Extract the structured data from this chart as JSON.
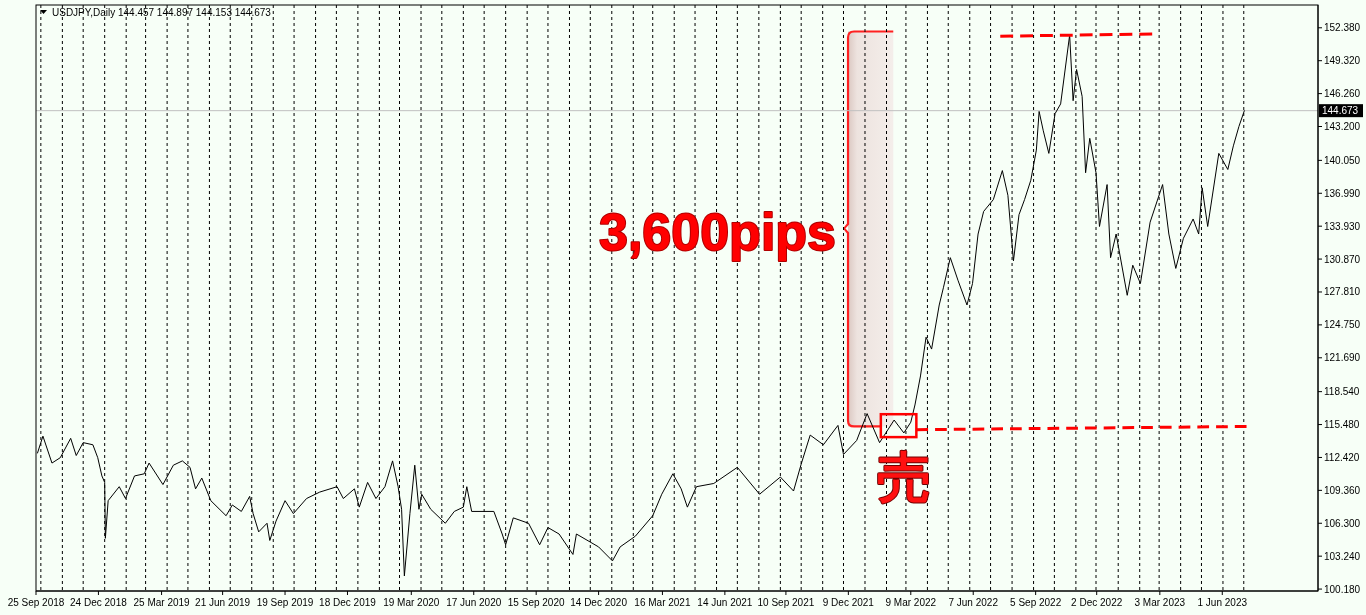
{
  "chart_data": {
    "type": "line",
    "title": "USDJPY,Daily 144.457 144.897 144.153 144.673",
    "annotations": [
      "3,600pips",
      "売"
    ],
    "xlim": [
      "2018-09-25",
      "2023-10-17"
    ],
    "xticks": [
      {
        "value": "2018-09-25",
        "label": "25 Sep 2018"
      },
      {
        "value": "2018-12-24",
        "label": "24 Dec 2018"
      },
      {
        "value": "2019-03-25",
        "label": "25 Mar 2019"
      },
      {
        "value": "2019-06-21",
        "label": "21 Jun 2019"
      },
      {
        "value": "2019-09-19",
        "label": "19 Sep 2019"
      },
      {
        "value": "2019-12-18",
        "label": "18 Dec 2019"
      },
      {
        "value": "2020-03-19",
        "label": "19 Mar 2020"
      },
      {
        "value": "2020-06-17",
        "label": "17 Jun 2020"
      },
      {
        "value": "2020-09-15",
        "label": "15 Sep 2020"
      },
      {
        "value": "2020-12-14",
        "label": "14 Dec 2020"
      },
      {
        "value": "2021-03-16",
        "label": "16 Mar 2021"
      },
      {
        "value": "2021-06-14",
        "label": "14 Jun 2021"
      },
      {
        "value": "2021-09-10",
        "label": "10 Sep 2021"
      },
      {
        "value": "2021-12-09",
        "label": "9 Dec 2021"
      },
      {
        "value": "2022-03-09",
        "label": "9 Mar 2022"
      },
      {
        "value": "2022-06-07",
        "label": "7 Jun 2022"
      },
      {
        "value": "2022-09-05",
        "label": "5 Sep 2022"
      },
      {
        "value": "2022-12-02",
        "label": "2 Dec 2022"
      },
      {
        "value": "2023-03-03",
        "label": "3 Mar 2023"
      },
      {
        "value": "2023-06-01",
        "label": "1 Jun 2023"
      },
      {
        "value": "2018-10-02",
        "label": null
      },
      {
        "value": "2018-11-02",
        "label": null
      },
      {
        "value": "2018-12-02",
        "label": null
      },
      {
        "value": "2019-01-02",
        "label": null
      },
      {
        "value": "2019-02-02",
        "label": null
      },
      {
        "value": "2019-03-02",
        "label": null
      },
      {
        "value": "2019-04-02",
        "label": null
      },
      {
        "value": "2019-05-02",
        "label": null
      },
      {
        "value": "2019-06-02",
        "label": null
      },
      {
        "value": "2019-07-02",
        "label": null
      },
      {
        "value": "2019-08-02",
        "label": null
      },
      {
        "value": "2019-09-02",
        "label": null
      },
      {
        "value": "2019-10-02",
        "label": null
      },
      {
        "value": "2019-11-02",
        "label": null
      },
      {
        "value": "2019-12-02",
        "label": null
      },
      {
        "value": "2020-01-02",
        "label": null
      },
      {
        "value": "2020-02-02",
        "label": null
      },
      {
        "value": "2020-03-02",
        "label": null
      },
      {
        "value": "2020-04-02",
        "label": null
      },
      {
        "value": "2020-05-02",
        "label": null
      },
      {
        "value": "2020-06-02",
        "label": null
      },
      {
        "value": "2020-07-02",
        "label": null
      },
      {
        "value": "2020-08-02",
        "label": null
      },
      {
        "value": "2020-09-02",
        "label": null
      },
      {
        "value": "2020-10-02",
        "label": null
      },
      {
        "value": "2020-11-02",
        "label": null
      },
      {
        "value": "2020-12-02",
        "label": null
      },
      {
        "value": "2021-01-02",
        "label": null
      },
      {
        "value": "2021-02-02",
        "label": null
      },
      {
        "value": "2021-03-02",
        "label": null
      },
      {
        "value": "2021-04-02",
        "label": null
      },
      {
        "value": "2021-05-02",
        "label": null
      },
      {
        "value": "2021-06-02",
        "label": null
      },
      {
        "value": "2021-07-02",
        "label": null
      },
      {
        "value": "2021-08-02",
        "label": null
      },
      {
        "value": "2021-09-02",
        "label": null
      },
      {
        "value": "2021-10-02",
        "label": null
      },
      {
        "value": "2021-11-02",
        "label": null
      },
      {
        "value": "2021-12-02",
        "label": null
      },
      {
        "value": "2022-01-02",
        "label": null
      },
      {
        "value": "2022-02-02",
        "label": null
      },
      {
        "value": "2022-03-02",
        "label": null
      },
      {
        "value": "2022-04-02",
        "label": null
      },
      {
        "value": "2022-05-02",
        "label": null
      },
      {
        "value": "2022-06-02",
        "label": null
      },
      {
        "value": "2022-07-02",
        "label": null
      },
      {
        "value": "2022-08-02",
        "label": null
      },
      {
        "value": "2022-09-02",
        "label": null
      },
      {
        "value": "2022-10-02",
        "label": null
      },
      {
        "value": "2022-11-02",
        "label": null
      },
      {
        "value": "2022-12-01",
        "label": null
      },
      {
        "value": "2023-01-02",
        "label": null
      },
      {
        "value": "2023-02-02",
        "label": null
      },
      {
        "value": "2023-03-02",
        "label": null
      },
      {
        "value": "2023-04-02",
        "label": null
      },
      {
        "value": "2023-05-02",
        "label": null
      },
      {
        "value": "2023-06-02",
        "label": null
      },
      {
        "value": "2023-07-02",
        "label": null
      }
    ],
    "ylim": [
      100.0,
      154.5
    ],
    "yticks": [
      {
        "value": 100.18,
        "label": "100.180"
      },
      {
        "value": 103.24,
        "label": "103.240"
      },
      {
        "value": 106.3,
        "label": "106.300"
      },
      {
        "value": 109.36,
        "label": "109.360"
      },
      {
        "value": 112.42,
        "label": "112.420"
      },
      {
        "value": 115.48,
        "label": "115.480"
      },
      {
        "value": 118.54,
        "label": "118.540"
      },
      {
        "value": 121.69,
        "label": "121.690"
      },
      {
        "value": 124.75,
        "label": "124.750"
      },
      {
        "value": 127.81,
        "label": "127.810"
      },
      {
        "value": 130.87,
        "label": "130.870"
      },
      {
        "value": 133.93,
        "label": "133.930"
      },
      {
        "value": 136.99,
        "label": "136.990"
      },
      {
        "value": 140.05,
        "label": "140.050"
      },
      {
        "value": 143.2,
        "label": "143.200"
      },
      {
        "value": 146.26,
        "label": "146.260"
      },
      {
        "value": 149.32,
        "label": "149.320"
      },
      {
        "value": 152.38,
        "label": "152.380"
      }
    ],
    "grid": "x",
    "ref_lines": [
      {
        "axis": "y",
        "value": 144.673,
        "label": "144.673",
        "color": "#c0c0c0"
      }
    ],
    "series": [
      {
        "color": "#000000",
        "x": [
          "2018-09-27",
          "2018-10-05",
          "2018-10-18",
          "2018-10-30",
          "2018-11-14",
          "2018-11-22",
          "2018-12-02",
          "2018-12-16",
          "2018-12-23",
          "2018-12-29",
          "2019-01-02",
          "2019-01-03",
          "2019-01-07",
          "2019-01-23",
          "2019-02-01",
          "2019-02-14",
          "2019-02-28",
          "2019-03-07",
          "2019-03-27",
          "2019-04-11",
          "2019-04-24",
          "2019-05-05",
          "2019-05-13",
          "2019-05-22",
          "2019-06-04",
          "2019-06-26",
          "2019-07-05",
          "2019-07-18",
          "2019-07-30",
          "2019-08-04",
          "2019-08-12",
          "2019-08-24",
          "2019-08-28",
          "2019-09-06",
          "2019-09-19",
          "2019-10-01",
          "2019-10-20",
          "2019-11-08",
          "2019-12-03",
          "2019-12-12",
          "2019-12-28",
          "2020-01-04",
          "2020-01-16",
          "2020-01-28",
          "2020-02-10",
          "2020-02-21",
          "2020-02-29",
          "2020-03-05",
          "2020-03-09",
          "2020-03-17",
          "2020-03-24",
          "2020-03-30",
          "2020-04-03",
          "2020-04-16",
          "2020-05-07",
          "2020-05-20",
          "2020-06-02",
          "2020-06-07",
          "2020-06-14",
          "2020-07-16",
          "2020-07-28",
          "2020-08-02",
          "2020-08-13",
          "2020-09-04",
          "2020-09-20",
          "2020-10-02",
          "2020-10-18",
          "2020-11-07",
          "2020-11-12",
          "2020-12-14",
          "2021-01-03",
          "2021-01-14",
          "2021-02-05",
          "2021-03-02",
          "2021-03-15",
          "2021-03-31",
          "2021-04-12",
          "2021-04-21",
          "2021-05-04",
          "2021-05-29",
          "2021-07-02",
          "2021-08-03",
          "2021-09-02",
          "2021-09-21",
          "2021-10-02",
          "2021-10-15",
          "2021-11-03",
          "2021-11-24",
          "2021-12-02",
          "2021-12-21",
          "2022-01-05",
          "2022-01-23",
          "2022-02-13",
          "2022-02-27",
          "2022-03-09",
          "2022-03-15",
          "2022-03-23",
          "2022-03-31",
          "2022-04-08",
          "2022-04-19",
          "2022-04-25",
          "2022-05-05",
          "2022-05-16",
          "2022-05-29",
          "2022-06-06",
          "2022-06-14",
          "2022-06-22",
          "2022-07-06",
          "2022-07-19",
          "2022-07-27",
          "2022-08-04",
          "2022-08-12",
          "2022-08-20",
          "2022-08-29",
          "2022-09-06",
          "2022-09-10",
          "2022-09-16",
          "2022-09-24",
          "2022-10-03",
          "2022-10-11",
          "2022-10-24",
          "2022-10-29",
          "2022-11-03",
          "2022-11-11",
          "2022-11-16",
          "2022-11-22",
          "2022-12-01",
          "2022-12-06",
          "2022-12-17",
          "2022-12-22",
          "2022-12-30",
          "2023-01-15",
          "2023-01-23",
          "2023-02-03",
          "2023-02-17",
          "2023-03-07",
          "2023-03-16",
          "2023-03-26",
          "2023-04-06",
          "2023-04-20",
          "2023-04-28",
          "2023-05-03",
          "2023-05-11",
          "2023-05-27",
          "2023-06-09",
          "2023-06-17",
          "2023-06-25",
          "2023-07-03"
        ],
        "values": [
          112.8,
          114.4,
          111.9,
          112.4,
          114.2,
          112.6,
          113.8,
          113.6,
          112.4,
          110.7,
          110.1,
          104.9,
          108.4,
          109.7,
          108.6,
          110.7,
          110.9,
          111.9,
          109.9,
          111.7,
          112.1,
          111.5,
          109.5,
          110.5,
          108.4,
          107.0,
          108.0,
          107.4,
          108.8,
          107.2,
          105.5,
          106.3,
          104.7,
          106.5,
          108.4,
          107.2,
          108.6,
          109.2,
          109.7,
          108.6,
          109.5,
          107.8,
          110.1,
          108.6,
          109.7,
          112.1,
          109.7,
          107.6,
          101.4,
          107.2,
          111.7,
          107.6,
          109.0,
          107.6,
          106.3,
          107.4,
          107.8,
          109.7,
          107.4,
          107.4,
          105.3,
          104.3,
          106.8,
          106.3,
          104.3,
          105.9,
          105.3,
          103.4,
          105.3,
          104.1,
          102.8,
          104.1,
          105.1,
          107.0,
          109.0,
          110.9,
          109.5,
          107.8,
          109.7,
          110.0,
          111.5,
          109.0,
          110.6,
          109.3,
          111.8,
          114.5,
          113.6,
          115.4,
          112.7,
          114.0,
          116.5,
          113.8,
          115.9,
          114.7,
          115.7,
          117.3,
          120.0,
          123.6,
          122.5,
          126.6,
          128.2,
          131.0,
          128.9,
          126.6,
          128.6,
          133.2,
          135.3,
          136.4,
          139.1,
          136.8,
          130.7,
          135.0,
          136.4,
          138.2,
          141.0,
          144.6,
          142.8,
          140.7,
          144.4,
          145.3,
          151.7,
          145.6,
          148.5,
          146.0,
          138.9,
          142.1,
          138.9,
          133.9,
          137.8,
          131.0,
          133.2,
          127.5,
          130.3,
          128.6,
          134.3,
          137.8,
          133.2,
          130.0,
          132.8,
          134.6,
          133.2,
          137.5,
          133.9,
          140.7,
          139.2,
          141.4,
          143.2,
          144.7
        ]
      },
      {
        "color": "#ff0000",
        "line_style": "dashed",
        "x": [
          "2022-03-17",
          "2023-07-06"
        ],
        "values": [
          115.0,
          115.3
        ]
      },
      {
        "color": "#ff0000",
        "line_style": "dashed",
        "x": [
          "2022-07-16",
          "2023-02-20"
        ],
        "values": [
          151.6,
          151.8
        ]
      }
    ]
  }
}
